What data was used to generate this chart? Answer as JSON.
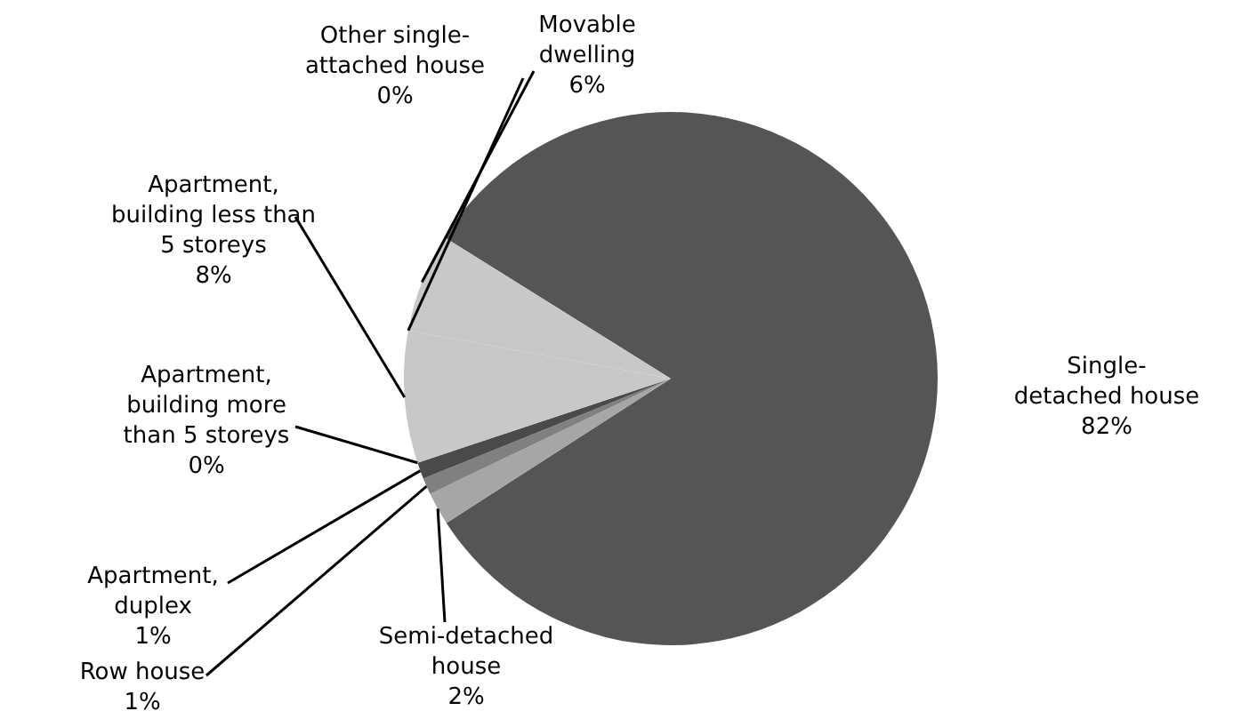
{
  "chart_data": {
    "type": "pie",
    "categories": [
      "Single-detached house",
      "Semi-detached house",
      "Row house",
      "Apartment, duplex",
      "Apartment, building more than 5 storeys",
      "Apartment, building less than 5 storeys",
      "Other single-attached house",
      "Movable dwelling"
    ],
    "values": [
      82,
      2,
      1,
      1,
      0,
      8,
      0,
      6
    ],
    "value_labels": [
      "82%",
      "2%",
      "1%",
      "1%",
      "0%",
      "8%",
      "0%",
      "6%"
    ],
    "colors": [
      "#555555",
      "#a6a6a6",
      "#808080",
      "#4a4a4a",
      "#2e2e2e",
      "#c8c8c8",
      "#999999",
      "#c8c8c8"
    ]
  }
}
